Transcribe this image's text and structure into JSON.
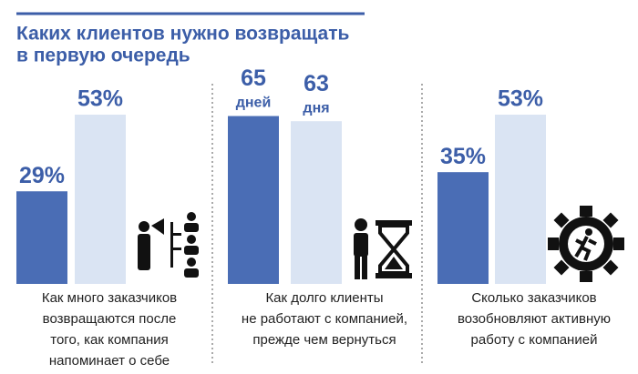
{
  "title": [
    "Каких клиентов нужно возвращать",
    "в первую очередь"
  ],
  "chart_data": [
    {
      "type": "bar",
      "values": [
        29,
        53
      ],
      "value_labels": [
        "29%",
        "53%"
      ],
      "colors": [
        "#4a6db5",
        "#dae4f3"
      ],
      "ylim": [
        0,
        55
      ],
      "caption": [
        "Как много заказчиков",
        "возвращаются после",
        "того, как компания",
        "напоминает о себе"
      ]
    },
    {
      "type": "bar",
      "values": [
        65,
        63
      ],
      "value_units": [
        "дней",
        "дня"
      ],
      "colors": [
        "#4a6db5",
        "#dae4f3"
      ],
      "ylim": [
        0,
        68
      ],
      "caption": [
        "Как долго клиенты",
        "не работают с компанией,",
        "прежде чем вернуться"
      ]
    },
    {
      "type": "bar",
      "values": [
        35,
        53
      ],
      "value_labels": [
        "35%",
        "53%"
      ],
      "colors": [
        "#4a6db5",
        "#dae4f3"
      ],
      "ylim": [
        0,
        55
      ],
      "caption": [
        "Сколько заказчиков",
        "возобновляют активную",
        "работу с компанией"
      ]
    }
  ]
}
